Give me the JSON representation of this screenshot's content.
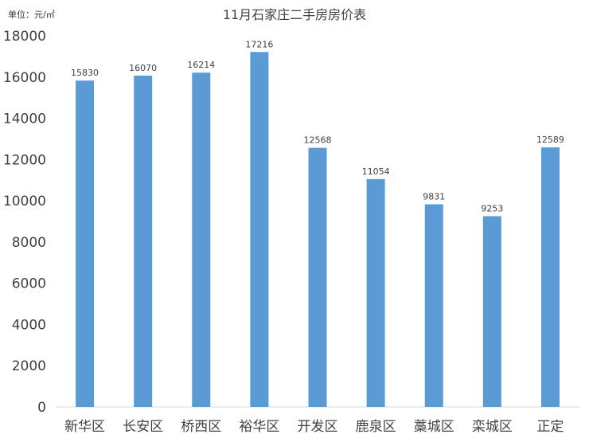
{
  "chart_data": {
    "type": "bar",
    "title": "11月石家庄二手房房价表",
    "unit_label": "单位：元/㎡",
    "xlabel": "",
    "ylabel": "",
    "categories": [
      "新华区",
      "长安区",
      "桥西区",
      "裕华区",
      "开发区",
      "鹿泉区",
      "藁城区",
      "栾城区",
      "正定"
    ],
    "values": [
      15830,
      16070,
      16214,
      17216,
      12568,
      11054,
      9831,
      9253,
      12589
    ],
    "value_labels": [
      "15830",
      "16070",
      "16214",
      "17216",
      "12568",
      "11054",
      "9831",
      "9253",
      "12589"
    ],
    "yticks": [
      "0",
      "2000",
      "4000",
      "6000",
      "8000",
      "10000",
      "12000",
      "14000",
      "16000",
      "18000"
    ],
    "ylim": [
      0,
      18000
    ],
    "grid": false,
    "bar_color": "#5b9bd5"
  }
}
